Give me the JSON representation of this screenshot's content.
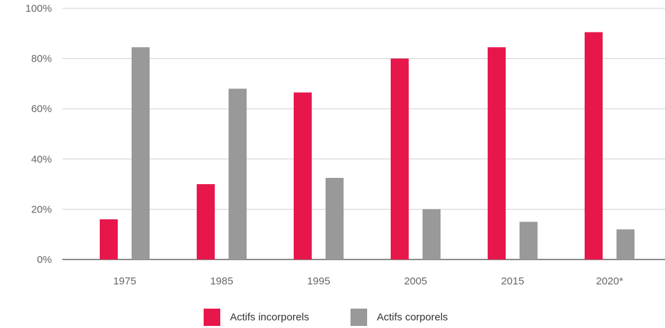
{
  "chart_data": {
    "type": "bar",
    "categories": [
      "1975",
      "1985",
      "1995",
      "2005",
      "2015",
      "2020*"
    ],
    "series": [
      {
        "name": "Actifs incorporels",
        "values": [
          16,
          30,
          66.5,
          80,
          84.5,
          90.5
        ],
        "color": "#e8174b"
      },
      {
        "name": "Actifs corporels",
        "values": [
          84.5,
          68,
          32.5,
          20,
          15,
          12
        ],
        "color": "#999999"
      }
    ],
    "ylim": [
      0,
      100
    ],
    "yticks": [
      "0%",
      "20%",
      "40%",
      "60%",
      "80%",
      "100%"
    ],
    "ytick_values": [
      0,
      20,
      40,
      60,
      80,
      100
    ],
    "grid": true,
    "legend_position": "bottom-center",
    "title": "",
    "xlabel": "",
    "ylabel": ""
  }
}
